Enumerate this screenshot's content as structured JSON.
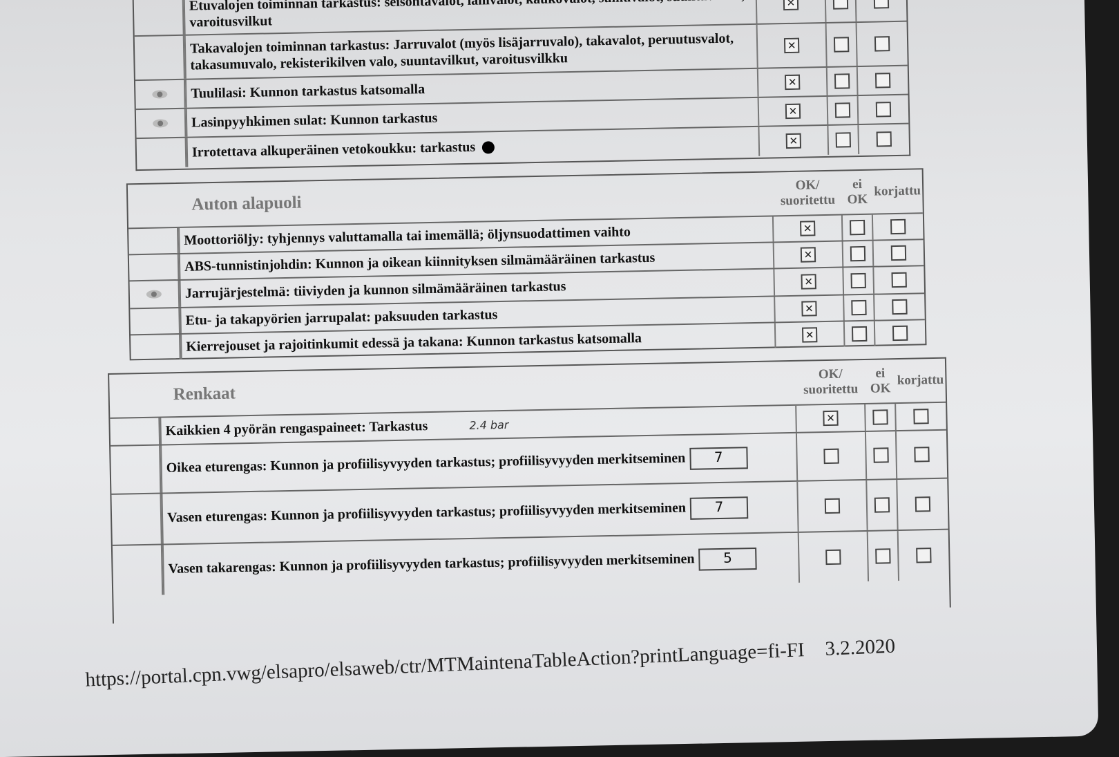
{
  "top_section": {
    "rows": [
      {
        "text": "Etuvalojen toiminnan tarkastus: seisontavalot, lähivalot, kaukovalot, sumuvalot, suuntavilkut, varoitusvilkut",
        "marker": false,
        "ok": true
      },
      {
        "text": "Takavalojen toiminnan tarkastus: Jarruvalot (myös lisäjarruvalo), takavalot, peruutusvalot, takasumuvalo, rekisterikilven valo, suuntavilkut, varoitusvilkku",
        "marker": false,
        "ok": true
      },
      {
        "text": "Tuulilasi: Kunnon tarkastus katsomalla",
        "marker": true,
        "ok": true
      },
      {
        "text": "Lasinpyyhkimen sulat: Kunnon tarkastus",
        "marker": true,
        "ok": true
      },
      {
        "text": "Irrotettava alkuperäinen vetokoukku: tarkastus",
        "marker": false,
        "ok": true,
        "bullet": true
      }
    ]
  },
  "underside": {
    "title": "Auton alapuoli",
    "col_ok": "OK/ suoritettu",
    "col_not_ok": "ei OK",
    "col_fixed": "korjattu",
    "rows": [
      {
        "text": "Moottoriöljy: tyhjennys valuttamalla tai imemällä; öljynsuodattimen vaihto",
        "marker": false,
        "ok": true
      },
      {
        "text": "ABS-tunnistinjohdin: Kunnon ja oikean kiinnityksen silmämääräinen tarkastus",
        "marker": false,
        "ok": true
      },
      {
        "text": "Jarrujärjestelmä: tiiviyden ja kunnon silmämääräinen tarkastus",
        "marker": true,
        "ok": true
      },
      {
        "text": "Etu- ja takapyörien jarrupalat: paksuuden tarkastus",
        "marker": false,
        "ok": true
      },
      {
        "text": "Kierrejouset ja rajoitinkumit edessä ja takana: Kunnon tarkastus katsomalla",
        "marker": false,
        "ok": true
      }
    ]
  },
  "tyres": {
    "title": "Renkaat",
    "col_ok": "OK/ suoritettu",
    "col_not_ok": "ei OK",
    "col_fixed": "korjattu",
    "rows": [
      {
        "text": "Kaikkien 4 pyörän rengaspaineet: Tarkastus",
        "handwritten": "2.4 bar",
        "ok": true
      },
      {
        "text": "Oikea eturengas: Kunnon ja profiilisyvyyden tarkastus; profiilisyvyyden merkitseminen",
        "value": "7",
        "ok": false
      },
      {
        "text": "Vasen eturengas: Kunnon ja profiilisyvyyden tarkastus; profiilisyvyyden merkitseminen",
        "value": "7",
        "ok": false
      },
      {
        "text": "Vasen takarengas: Kunnon ja profiilisyvyyden tarkastus; profiilisyvyyden merkitseminen",
        "value": "5",
        "ok": false
      }
    ]
  },
  "footer": {
    "url": "https://portal.cpn.vwg/elsapro/elsaweb/ctr/MTMaintenaTableAction?printLanguage=fi-FI",
    "date": "3.2.2020"
  },
  "check_mark": "☒"
}
